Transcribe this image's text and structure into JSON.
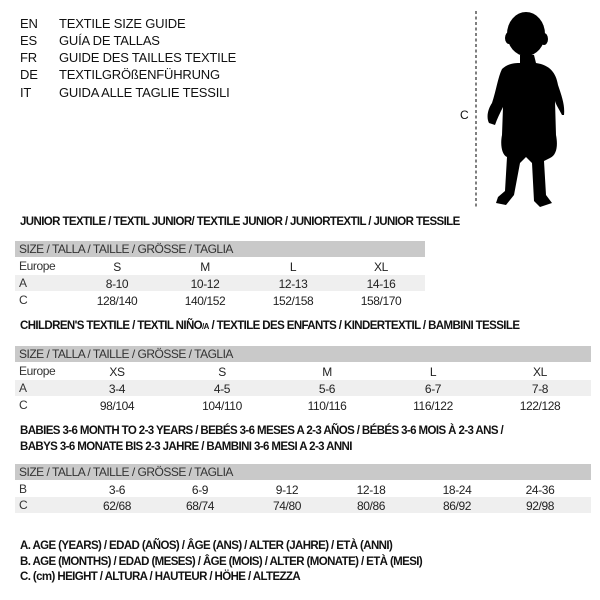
{
  "languages": [
    {
      "code": "EN",
      "title": "TEXTILE SIZE GUIDE"
    },
    {
      "code": "ES",
      "title": "GUÍA DE TALLAS"
    },
    {
      "code": "FR",
      "title": "GUIDE DES TAILLES TEXTILE"
    },
    {
      "code": "DE",
      "title": "TEXTILGRÖßENFÜHRUNG"
    },
    {
      "code": "IT",
      "title": "GUIDA ALLE TAGLIE TESSILI"
    }
  ],
  "figure": {
    "measure_label": "C",
    "icon": "baby-silhouette"
  },
  "junior": {
    "title": "JUNIOR TEXTILE / TEXTIL JUNIOR/ TEXTILE JUNIOR / JUNIORTEXTIL / JUNIOR TESSILE",
    "header": "SIZE / TALLA / TAILLE / GRÖSSE / TAGLIA",
    "rows": [
      {
        "label": "Europe",
        "values": [
          "S",
          "M",
          "L",
          "XL"
        ]
      },
      {
        "label": "A",
        "values": [
          "8-10",
          "10-12",
          "12-13",
          "14-16"
        ]
      },
      {
        "label": "C",
        "values": [
          "128/140",
          "140/152",
          "152/158",
          "158/170"
        ]
      }
    ]
  },
  "children": {
    "title_a": "CHILDREN'S TEXTILE / TEXTIL NIÑO",
    "title_sub": "/A",
    "title_b": " / TEXTILE DES ENFANTS / KINDERTEXTIL / BAMBINI TESSILE",
    "header": "SIZE / TALLA / TAILLE / GRÖSSE / TAGLIA",
    "rows": [
      {
        "label": "Europe",
        "values": [
          "XS",
          "S",
          "M",
          "L",
          "XL"
        ]
      },
      {
        "label": "A",
        "values": [
          "3-4",
          "4-5",
          "5-6",
          "6-7",
          "7-8"
        ]
      },
      {
        "label": "C",
        "values": [
          "98/104",
          "104/110",
          "110/116",
          "116/122",
          "122/128"
        ]
      }
    ]
  },
  "babies": {
    "title_line1": "BABIES 3-6 MONTH TO 2-3 YEARS / BEBÉS 3-6 MESES A 2-3 AÑOS / BÉBÉS 3-6 MOIS À 2-3 ANS /",
    "title_line2": "BABYS 3-6 MONATE BIS 2-3 JAHRE / BAMBINI 3-6 MESI A 2-3 ANNI",
    "header": "SIZE / TALLA / TAILLE / GRÖSSE / TAGLIA",
    "rows": [
      {
        "label": "B",
        "values": [
          "3-6",
          "6-9",
          "9-12",
          "12-18",
          "18-24",
          "24-36"
        ]
      },
      {
        "label": "C",
        "values": [
          "62/68",
          "68/74",
          "74/80",
          "80/86",
          "86/92",
          "92/98"
        ]
      }
    ]
  },
  "legend": [
    "A. AGE (YEARS) / EDAD (AÑOS) / ÂGE (ANS) / ALTER (JAHRE) / ETÀ (ANNI)",
    "B. AGE (MONTHS) / EDAD (MESES) / ÂGE (MOIS) / ALTER (MONATE) / ETÀ (MESI)",
    "C. (cm) HEIGHT / ALTURA / HAUTEUR / HÖHE / ALTEZZA"
  ],
  "colors": {
    "header_bg": "#c9c9c9",
    "alt_row_bg": "#efefef"
  }
}
